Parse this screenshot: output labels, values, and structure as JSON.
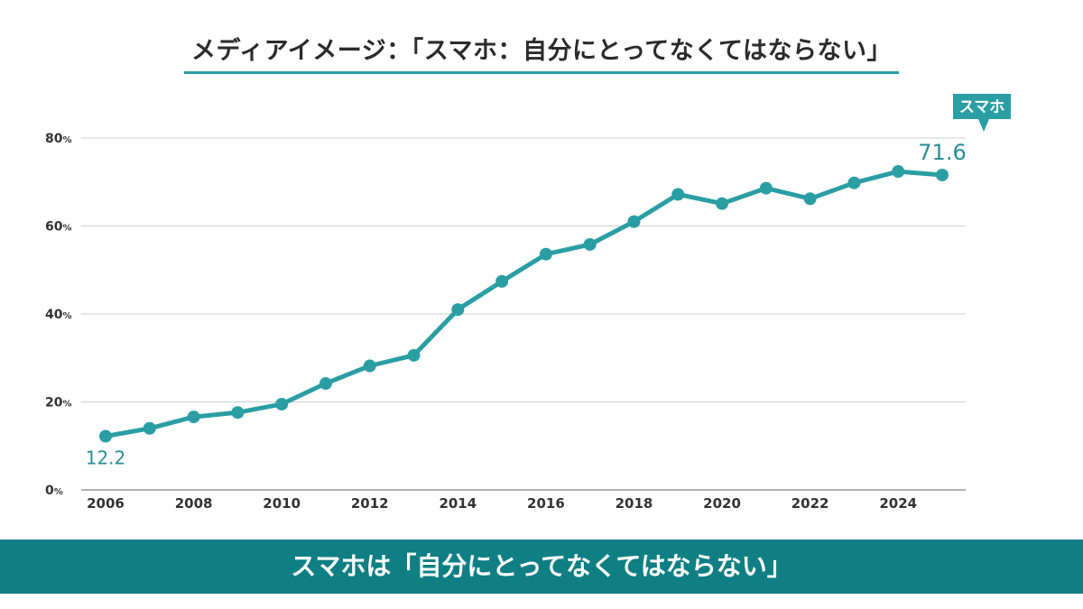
{
  "title": "メディアイメージ：「スマホ：自分にとってなくてはならない」",
  "footer": "スマホは「自分にとってなくてはならない」",
  "colors": {
    "line": "#2b9ea4",
    "label": "#2a8d93",
    "banner": "#0f7f84",
    "grid": "#cfcfcf"
  },
  "chart_data": {
    "type": "line",
    "title": "メディアイメージ：「スマホ：自分にとってなくてはならない」",
    "xlabel": "",
    "ylabel": "",
    "y_tick_values": [
      0,
      20,
      40,
      60,
      80
    ],
    "y_tick_suffix": "%",
    "x_tick_labels": [
      "2006",
      "2008",
      "2010",
      "2012",
      "2014",
      "2016",
      "2018",
      "2020",
      "2022",
      "2024"
    ],
    "xlim": [
      2006,
      2025
    ],
    "ylim": [
      0,
      80
    ],
    "grid": true,
    "series": [
      {
        "name": "スマホ",
        "x": [
          2006,
          2007,
          2008,
          2009,
          2010,
          2011,
          2012,
          2013,
          2014,
          2015,
          2016,
          2017,
          2018,
          2019,
          2020,
          2021,
          2022,
          2023,
          2024,
          2025
        ],
        "values": [
          12.2,
          14.0,
          16.6,
          17.6,
          19.5,
          24.2,
          28.2,
          30.6,
          41.0,
          47.4,
          53.6,
          55.8,
          61.0,
          67.2,
          65.1,
          68.6,
          66.2,
          69.8,
          72.4,
          71.6
        ]
      }
    ],
    "annotations": {
      "first_value_label": "12.2",
      "last_value_label": "71.6",
      "series_callout": "スマホ"
    }
  }
}
